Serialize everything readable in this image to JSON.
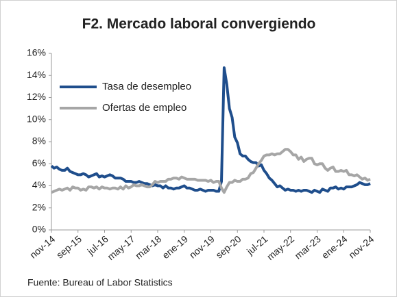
{
  "chart_data": {
    "type": "line",
    "title": "F2. Mercado laboral convergiendo",
    "source": "Fuente: Bureau of Labor Statistics",
    "legend": "upper-left",
    "ylim": [
      0,
      16
    ],
    "yticks": [
      {
        "value": 0,
        "label": "0%"
      },
      {
        "value": 2,
        "label": "2%"
      },
      {
        "value": 4,
        "label": "4%"
      },
      {
        "value": 6,
        "label": "6%"
      },
      {
        "value": 8,
        "label": "8%"
      },
      {
        "value": 10,
        "label": "10%"
      },
      {
        "value": 12,
        "label": "12%"
      },
      {
        "value": 14,
        "label": "14%"
      },
      {
        "value": 16,
        "label": "16%"
      }
    ],
    "categories": [
      "nov-14",
      null,
      null,
      null,
      null,
      null,
      null,
      null,
      null,
      null,
      "sep-15",
      null,
      null,
      null,
      null,
      null,
      null,
      null,
      null,
      null,
      "jul-16",
      null,
      null,
      null,
      null,
      null,
      null,
      null,
      null,
      null,
      "may-17",
      null,
      null,
      null,
      null,
      null,
      null,
      null,
      null,
      null,
      "mar-18",
      null,
      null,
      null,
      null,
      null,
      null,
      null,
      null,
      null,
      "ene-19",
      null,
      null,
      null,
      null,
      null,
      null,
      null,
      null,
      null,
      "nov-19",
      null,
      null,
      null,
      null,
      null,
      null,
      null,
      null,
      null,
      "sep-20",
      null,
      null,
      null,
      null,
      null,
      null,
      null,
      null,
      null,
      "jul-21",
      null,
      null,
      null,
      null,
      null,
      null,
      null,
      null,
      null,
      "may-22",
      null,
      null,
      null,
      null,
      null,
      null,
      null,
      null,
      null,
      "mar-23",
      null,
      null,
      null,
      null,
      null,
      null,
      null,
      null,
      null,
      "ene-24",
      null,
      null,
      null,
      null,
      null,
      null,
      null,
      null,
      null,
      "nov-24"
    ],
    "series": [
      {
        "name": "Tasa de desempleo",
        "color": "#1f4e8c",
        "values": [
          5.8,
          5.6,
          5.7,
          5.5,
          5.4,
          5.4,
          5.6,
          5.3,
          5.2,
          5.1,
          5.0,
          5.0,
          5.1,
          5.0,
          4.8,
          4.9,
          5.0,
          5.1,
          4.8,
          4.9,
          4.8,
          4.9,
          5.0,
          4.9,
          4.7,
          4.7,
          4.7,
          4.6,
          4.4,
          4.4,
          4.4,
          4.3,
          4.3,
          4.4,
          4.3,
          4.2,
          4.2,
          4.1,
          4.0,
          4.1,
          4.0,
          4.0,
          3.8,
          4.0,
          3.8,
          3.8,
          3.7,
          3.8,
          3.8,
          3.9,
          4.0,
          3.8,
          3.8,
          3.7,
          3.6,
          3.6,
          3.7,
          3.6,
          3.5,
          3.6,
          3.6,
          3.6,
          3.5,
          3.5,
          4.4,
          14.7,
          13.2,
          11.0,
          10.2,
          8.4,
          7.9,
          6.9,
          6.7,
          6.7,
          6.4,
          6.2,
          6.1,
          6.1,
          5.8,
          5.9,
          5.4,
          5.1,
          4.7,
          4.5,
          4.2,
          3.9,
          4.0,
          3.8,
          3.6,
          3.7,
          3.6,
          3.6,
          3.5,
          3.6,
          3.5,
          3.6,
          3.6,
          3.5,
          3.4,
          3.6,
          3.5,
          3.4,
          3.7,
          3.6,
          3.5,
          3.8,
          3.8,
          3.9,
          3.7,
          3.8,
          3.7,
          3.9,
          3.9,
          3.9,
          4.0,
          4.1,
          4.3,
          4.2,
          4.1,
          4.1,
          4.2
        ]
      },
      {
        "name": "Ofertas de empleo",
        "color": "#a6a6a6",
        "values": [
          3.4,
          3.5,
          3.6,
          3.7,
          3.6,
          3.7,
          3.8,
          3.6,
          3.9,
          3.8,
          3.8,
          3.6,
          3.7,
          3.6,
          3.9,
          3.9,
          3.8,
          3.9,
          3.7,
          3.9,
          3.8,
          3.8,
          3.7,
          3.8,
          3.8,
          3.7,
          3.9,
          3.7,
          4.0,
          3.8,
          3.9,
          4.1,
          4.0,
          4.0,
          4.1,
          4.0,
          3.9,
          3.9,
          4.1,
          4.4,
          4.3,
          4.4,
          4.4,
          4.4,
          4.6,
          4.6,
          4.7,
          4.7,
          4.6,
          4.8,
          4.7,
          4.6,
          4.6,
          4.6,
          4.6,
          4.5,
          4.5,
          4.5,
          4.5,
          4.4,
          4.5,
          4.3,
          4.4,
          4.4,
          3.8,
          3.4,
          3.9,
          4.3,
          4.3,
          4.5,
          4.4,
          4.4,
          4.6,
          4.6,
          4.7,
          5.1,
          5.2,
          5.6,
          6.0,
          6.3,
          6.7,
          6.8,
          6.8,
          6.9,
          6.8,
          6.9,
          6.9,
          7.1,
          7.3,
          7.3,
          7.1,
          6.8,
          6.8,
          6.4,
          6.6,
          6.2,
          6.4,
          6.5,
          6.5,
          6.0,
          5.9,
          6.0,
          6.0,
          5.6,
          5.4,
          5.6,
          5.7,
          5.3,
          5.3,
          5.4,
          5.3,
          5.4,
          5.0,
          5.0,
          4.9,
          5.0,
          4.8,
          4.6,
          4.7,
          4.5,
          4.6
        ]
      }
    ]
  }
}
